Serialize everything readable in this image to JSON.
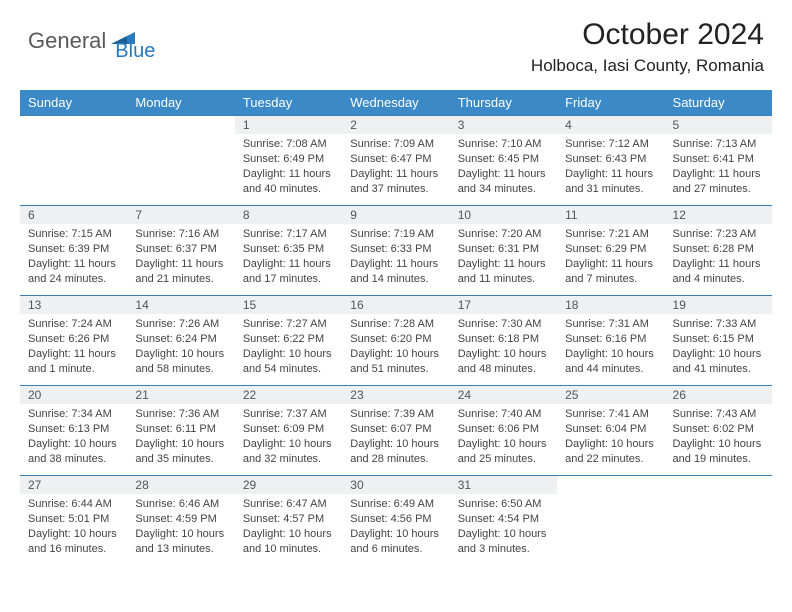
{
  "logo": {
    "part1": "General",
    "part2": "Blue"
  },
  "title": "October 2024",
  "location": "Holboca, Iasi County, Romania",
  "colors": {
    "header_bg": "#3b89c7",
    "header_text": "#ffffff",
    "daynum_bg": "#eef0f1",
    "row_border": "#3b7fb5",
    "logo_gray": "#5a5a5a",
    "logo_blue": "#2a7ac0"
  },
  "weekdays": [
    "Sunday",
    "Monday",
    "Tuesday",
    "Wednesday",
    "Thursday",
    "Friday",
    "Saturday"
  ],
  "weeks": [
    [
      {
        "empty": true
      },
      {
        "empty": true
      },
      {
        "day": "1",
        "sunrise": "Sunrise: 7:08 AM",
        "sunset": "Sunset: 6:49 PM",
        "daylight": "Daylight: 11 hours and 40 minutes."
      },
      {
        "day": "2",
        "sunrise": "Sunrise: 7:09 AM",
        "sunset": "Sunset: 6:47 PM",
        "daylight": "Daylight: 11 hours and 37 minutes."
      },
      {
        "day": "3",
        "sunrise": "Sunrise: 7:10 AM",
        "sunset": "Sunset: 6:45 PM",
        "daylight": "Daylight: 11 hours and 34 minutes."
      },
      {
        "day": "4",
        "sunrise": "Sunrise: 7:12 AM",
        "sunset": "Sunset: 6:43 PM",
        "daylight": "Daylight: 11 hours and 31 minutes."
      },
      {
        "day": "5",
        "sunrise": "Sunrise: 7:13 AM",
        "sunset": "Sunset: 6:41 PM",
        "daylight": "Daylight: 11 hours and 27 minutes."
      }
    ],
    [
      {
        "day": "6",
        "sunrise": "Sunrise: 7:15 AM",
        "sunset": "Sunset: 6:39 PM",
        "daylight": "Daylight: 11 hours and 24 minutes."
      },
      {
        "day": "7",
        "sunrise": "Sunrise: 7:16 AM",
        "sunset": "Sunset: 6:37 PM",
        "daylight": "Daylight: 11 hours and 21 minutes."
      },
      {
        "day": "8",
        "sunrise": "Sunrise: 7:17 AM",
        "sunset": "Sunset: 6:35 PM",
        "daylight": "Daylight: 11 hours and 17 minutes."
      },
      {
        "day": "9",
        "sunrise": "Sunrise: 7:19 AM",
        "sunset": "Sunset: 6:33 PM",
        "daylight": "Daylight: 11 hours and 14 minutes."
      },
      {
        "day": "10",
        "sunrise": "Sunrise: 7:20 AM",
        "sunset": "Sunset: 6:31 PM",
        "daylight": "Daylight: 11 hours and 11 minutes."
      },
      {
        "day": "11",
        "sunrise": "Sunrise: 7:21 AM",
        "sunset": "Sunset: 6:29 PM",
        "daylight": "Daylight: 11 hours and 7 minutes."
      },
      {
        "day": "12",
        "sunrise": "Sunrise: 7:23 AM",
        "sunset": "Sunset: 6:28 PM",
        "daylight": "Daylight: 11 hours and 4 minutes."
      }
    ],
    [
      {
        "day": "13",
        "sunrise": "Sunrise: 7:24 AM",
        "sunset": "Sunset: 6:26 PM",
        "daylight": "Daylight: 11 hours and 1 minute."
      },
      {
        "day": "14",
        "sunrise": "Sunrise: 7:26 AM",
        "sunset": "Sunset: 6:24 PM",
        "daylight": "Daylight: 10 hours and 58 minutes."
      },
      {
        "day": "15",
        "sunrise": "Sunrise: 7:27 AM",
        "sunset": "Sunset: 6:22 PM",
        "daylight": "Daylight: 10 hours and 54 minutes."
      },
      {
        "day": "16",
        "sunrise": "Sunrise: 7:28 AM",
        "sunset": "Sunset: 6:20 PM",
        "daylight": "Daylight: 10 hours and 51 minutes."
      },
      {
        "day": "17",
        "sunrise": "Sunrise: 7:30 AM",
        "sunset": "Sunset: 6:18 PM",
        "daylight": "Daylight: 10 hours and 48 minutes."
      },
      {
        "day": "18",
        "sunrise": "Sunrise: 7:31 AM",
        "sunset": "Sunset: 6:16 PM",
        "daylight": "Daylight: 10 hours and 44 minutes."
      },
      {
        "day": "19",
        "sunrise": "Sunrise: 7:33 AM",
        "sunset": "Sunset: 6:15 PM",
        "daylight": "Daylight: 10 hours and 41 minutes."
      }
    ],
    [
      {
        "day": "20",
        "sunrise": "Sunrise: 7:34 AM",
        "sunset": "Sunset: 6:13 PM",
        "daylight": "Daylight: 10 hours and 38 minutes."
      },
      {
        "day": "21",
        "sunrise": "Sunrise: 7:36 AM",
        "sunset": "Sunset: 6:11 PM",
        "daylight": "Daylight: 10 hours and 35 minutes."
      },
      {
        "day": "22",
        "sunrise": "Sunrise: 7:37 AM",
        "sunset": "Sunset: 6:09 PM",
        "daylight": "Daylight: 10 hours and 32 minutes."
      },
      {
        "day": "23",
        "sunrise": "Sunrise: 7:39 AM",
        "sunset": "Sunset: 6:07 PM",
        "daylight": "Daylight: 10 hours and 28 minutes."
      },
      {
        "day": "24",
        "sunrise": "Sunrise: 7:40 AM",
        "sunset": "Sunset: 6:06 PM",
        "daylight": "Daylight: 10 hours and 25 minutes."
      },
      {
        "day": "25",
        "sunrise": "Sunrise: 7:41 AM",
        "sunset": "Sunset: 6:04 PM",
        "daylight": "Daylight: 10 hours and 22 minutes."
      },
      {
        "day": "26",
        "sunrise": "Sunrise: 7:43 AM",
        "sunset": "Sunset: 6:02 PM",
        "daylight": "Daylight: 10 hours and 19 minutes."
      }
    ],
    [
      {
        "day": "27",
        "sunrise": "Sunrise: 6:44 AM",
        "sunset": "Sunset: 5:01 PM",
        "daylight": "Daylight: 10 hours and 16 minutes."
      },
      {
        "day": "28",
        "sunrise": "Sunrise: 6:46 AM",
        "sunset": "Sunset: 4:59 PM",
        "daylight": "Daylight: 10 hours and 13 minutes."
      },
      {
        "day": "29",
        "sunrise": "Sunrise: 6:47 AM",
        "sunset": "Sunset: 4:57 PM",
        "daylight": "Daylight: 10 hours and 10 minutes."
      },
      {
        "day": "30",
        "sunrise": "Sunrise: 6:49 AM",
        "sunset": "Sunset: 4:56 PM",
        "daylight": "Daylight: 10 hours and 6 minutes."
      },
      {
        "day": "31",
        "sunrise": "Sunrise: 6:50 AM",
        "sunset": "Sunset: 4:54 PM",
        "daylight": "Daylight: 10 hours and 3 minutes."
      },
      {
        "empty": true
      },
      {
        "empty": true
      }
    ]
  ]
}
